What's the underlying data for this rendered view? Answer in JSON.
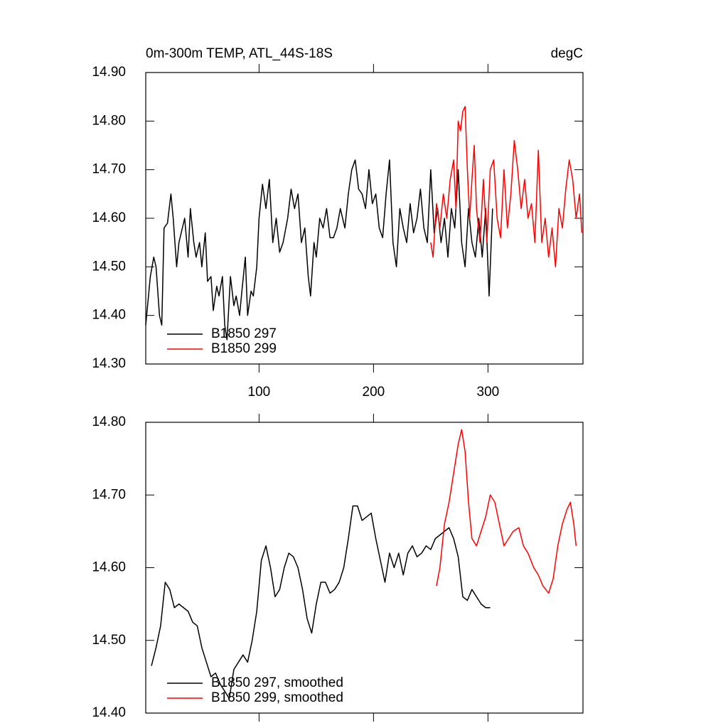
{
  "chart_data": [
    {
      "type": "line",
      "title": "0m-300m TEMP, ATL_44S-18S",
      "units": "degC",
      "xlim": [
        1,
        383
      ],
      "xticks": [
        100,
        200,
        300
      ],
      "ylim": [
        14.3,
        14.9
      ],
      "yticks": [
        {
          "value": 14.3,
          "label": "14.30"
        },
        {
          "value": 14.4,
          "label": "14.40"
        },
        {
          "value": 14.5,
          "label": "14.50"
        },
        {
          "value": 14.6,
          "label": "14.60"
        },
        {
          "value": 14.7,
          "label": "14.70"
        },
        {
          "value": 14.8,
          "label": "14.80"
        },
        {
          "value": 14.9,
          "label": "14.90"
        }
      ],
      "legend": "lower left",
      "series": [
        {
          "name": "B1850 297",
          "color": "#000000",
          "x": [
            1,
            5,
            8,
            10,
            13,
            15,
            17,
            20,
            23,
            25,
            28,
            30,
            35,
            38,
            40,
            43,
            45,
            48,
            50,
            53,
            55,
            58,
            60,
            63,
            65,
            68,
            70,
            72,
            75,
            78,
            80,
            83,
            85,
            88,
            90,
            93,
            95,
            98,
            100,
            103,
            106,
            109,
            112,
            115,
            118,
            121,
            125,
            128,
            131,
            134,
            137,
            140,
            143,
            145,
            148,
            150,
            153,
            156,
            159,
            162,
            165,
            168,
            171,
            175,
            178,
            181,
            184,
            187,
            190,
            193,
            196,
            199,
            202,
            205,
            208,
            211,
            214,
            217,
            220,
            223,
            226,
            229,
            232,
            235,
            238,
            241,
            244,
            247,
            250,
            253,
            256,
            259,
            262,
            265,
            268,
            271,
            274,
            277,
            280,
            283,
            286,
            289,
            292,
            295,
            298,
            301,
            304
          ],
          "values": [
            14.38,
            14.48,
            14.52,
            14.5,
            14.4,
            14.38,
            14.58,
            14.59,
            14.65,
            14.6,
            14.5,
            14.55,
            14.6,
            14.52,
            14.62,
            14.55,
            14.52,
            14.55,
            14.5,
            14.57,
            14.47,
            14.48,
            14.41,
            14.46,
            14.44,
            14.48,
            14.38,
            14.35,
            14.48,
            14.42,
            14.44,
            14.4,
            14.45,
            14.52,
            14.4,
            14.45,
            14.44,
            14.5,
            14.6,
            14.67,
            14.62,
            14.68,
            14.55,
            14.6,
            14.53,
            14.55,
            14.6,
            14.66,
            14.62,
            14.65,
            14.55,
            14.58,
            14.48,
            14.44,
            14.55,
            14.52,
            14.6,
            14.58,
            14.62,
            14.56,
            14.56,
            14.58,
            14.62,
            14.58,
            14.65,
            14.7,
            14.72,
            14.66,
            14.65,
            14.62,
            14.7,
            14.63,
            14.65,
            14.58,
            14.56,
            14.65,
            14.72,
            14.55,
            14.5,
            14.62,
            14.58,
            14.55,
            14.63,
            14.57,
            14.6,
            14.66,
            14.58,
            14.55,
            14.7,
            14.57,
            14.62,
            14.55,
            14.6,
            14.52,
            14.62,
            14.58,
            14.7,
            14.55,
            14.5,
            14.62,
            14.55,
            14.52,
            14.6,
            14.52,
            14.62,
            14.44,
            14.62
          ]
        },
        {
          "name": "B1850 299",
          "color": "#ff0000",
          "x": [
            250,
            252,
            255,
            258,
            261,
            264,
            267,
            270,
            272,
            274,
            276,
            278,
            280,
            282,
            284,
            286,
            288,
            290,
            293,
            296,
            299,
            302,
            305,
            308,
            311,
            314,
            317,
            320,
            323,
            326,
            329,
            332,
            335,
            338,
            341,
            344,
            347,
            350,
            353,
            356,
            359,
            362,
            365,
            368,
            371,
            374,
            377,
            380,
            382
          ],
          "values": [
            14.55,
            14.52,
            14.63,
            14.58,
            14.65,
            14.6,
            14.68,
            14.72,
            14.62,
            14.8,
            14.78,
            14.82,
            14.83,
            14.7,
            14.6,
            14.68,
            14.75,
            14.62,
            14.55,
            14.68,
            14.55,
            14.7,
            14.72,
            14.6,
            14.56,
            14.7,
            14.58,
            14.65,
            14.76,
            14.7,
            14.62,
            14.68,
            14.6,
            14.63,
            14.55,
            14.74,
            14.55,
            14.6,
            14.52,
            14.58,
            14.5,
            14.62,
            14.58,
            14.66,
            14.72,
            14.68,
            14.6,
            14.65,
            14.57
          ]
        }
      ]
    },
    {
      "type": "line",
      "xlim": [
        1,
        383
      ],
      "xticks": [
        100,
        200,
        300
      ],
      "show_x_tick_labels": false,
      "ylim": [
        14.4,
        14.8
      ],
      "yticks": [
        {
          "value": 14.4,
          "label": "14.40"
        },
        {
          "value": 14.5,
          "label": "14.50"
        },
        {
          "value": 14.6,
          "label": "14.60"
        },
        {
          "value": 14.7,
          "label": "14.70"
        },
        {
          "value": 14.8,
          "label": "14.80"
        }
      ],
      "legend": "lower left",
      "series": [
        {
          "name": "B1850 297, smoothed",
          "color": "#000000",
          "x": [
            6,
            10,
            14,
            18,
            22,
            26,
            30,
            34,
            38,
            42,
            46,
            50,
            54,
            58,
            62,
            66,
            70,
            74,
            78,
            82,
            86,
            90,
            94,
            98,
            102,
            106,
            110,
            114,
            118,
            122,
            126,
            130,
            134,
            138,
            142,
            146,
            150,
            154,
            158,
            162,
            166,
            170,
            174,
            178,
            182,
            186,
            190,
            194,
            198,
            202,
            206,
            210,
            214,
            218,
            222,
            226,
            230,
            234,
            238,
            242,
            246,
            250,
            254,
            258,
            262,
            266,
            270,
            274,
            278,
            282,
            286,
            290,
            294,
            298,
            302
          ],
          "values": [
            14.465,
            14.49,
            14.52,
            14.58,
            14.57,
            14.545,
            14.55,
            14.545,
            14.54,
            14.525,
            14.52,
            14.49,
            14.47,
            14.45,
            14.455,
            14.44,
            14.43,
            14.42,
            14.46,
            14.47,
            14.48,
            14.47,
            14.5,
            14.54,
            14.61,
            14.63,
            14.6,
            14.56,
            14.57,
            14.6,
            14.62,
            14.615,
            14.6,
            14.57,
            14.53,
            14.51,
            14.55,
            14.58,
            14.58,
            14.565,
            14.57,
            14.58,
            14.6,
            14.64,
            14.685,
            14.685,
            14.665,
            14.67,
            14.675,
            14.64,
            14.61,
            14.58,
            14.62,
            14.6,
            14.62,
            14.59,
            14.62,
            14.63,
            14.615,
            14.62,
            14.63,
            14.625,
            14.64,
            14.645,
            14.65,
            14.655,
            14.64,
            14.615,
            14.56,
            14.555,
            14.57,
            14.56,
            14.55,
            14.545,
            14.545
          ]
        },
        {
          "name": "B1850 299, smoothed",
          "color": "#ff0000",
          "x": [
            255,
            258,
            262,
            266,
            270,
            274,
            277,
            280,
            283,
            286,
            290,
            294,
            298,
            302,
            306,
            310,
            314,
            318,
            322,
            327,
            331,
            335,
            340,
            344,
            348,
            353,
            357,
            361,
            365,
            369,
            372,
            375,
            377
          ],
          "values": [
            14.575,
            14.6,
            14.66,
            14.69,
            14.73,
            14.77,
            14.79,
            14.76,
            14.69,
            14.64,
            14.63,
            14.65,
            14.67,
            14.7,
            14.69,
            14.66,
            14.63,
            14.64,
            14.65,
            14.655,
            14.63,
            14.62,
            14.6,
            14.59,
            14.575,
            14.565,
            14.585,
            14.63,
            14.66,
            14.68,
            14.69,
            14.66,
            14.63
          ]
        }
      ]
    }
  ]
}
